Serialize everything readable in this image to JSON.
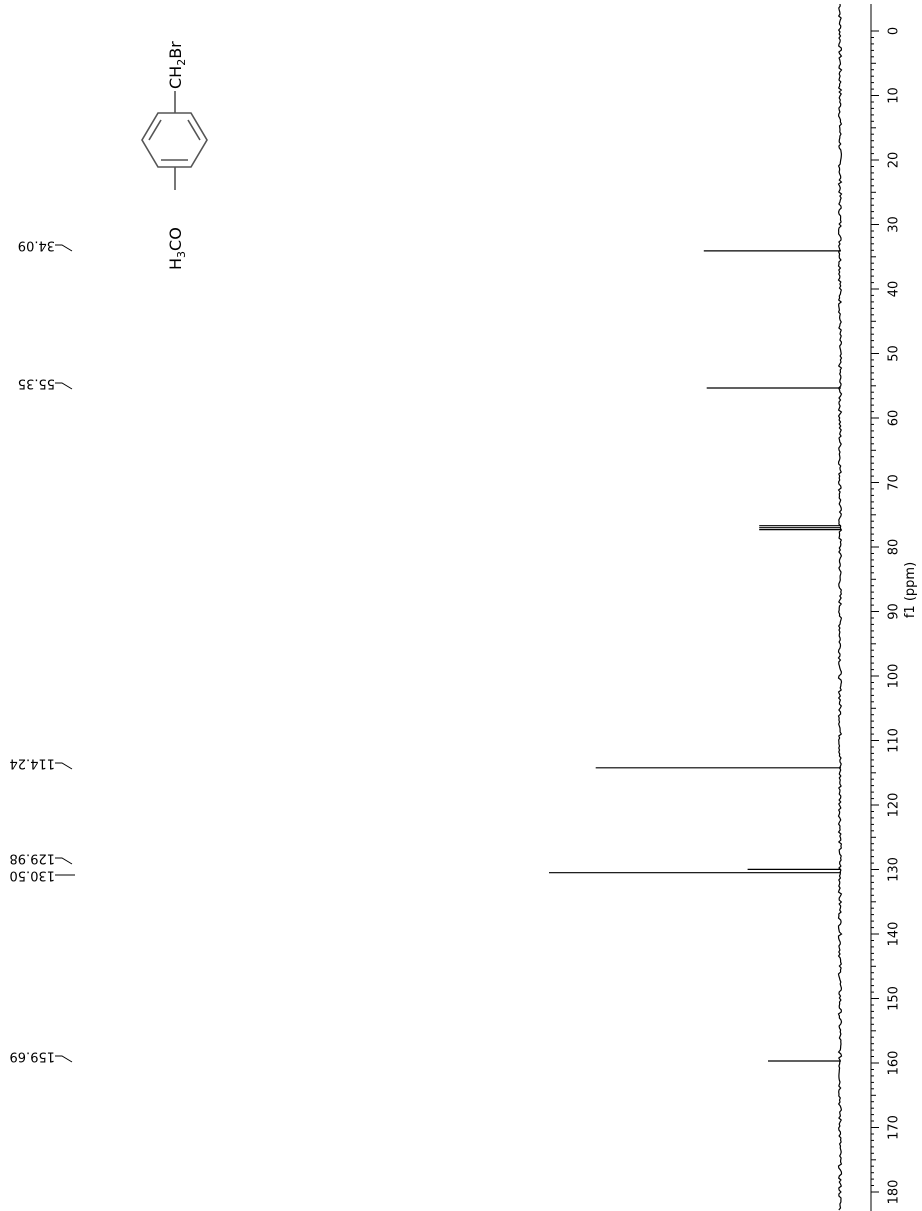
{
  "chart_data": {
    "type": "line",
    "title": "",
    "xlabel": "f1 (ppm)",
    "ylabel": "",
    "xlim": [
      0,
      180
    ],
    "x_ticks": [
      0,
      10,
      20,
      30,
      40,
      50,
      60,
      70,
      80,
      90,
      100,
      110,
      120,
      130,
      140,
      150,
      160,
      170,
      180
    ],
    "tick_labels": [
      "0",
      "10",
      "20",
      "30",
      "40",
      "50",
      "60",
      "70",
      "80",
      "90",
      "100",
      "110",
      "120",
      "130",
      "140",
      "150",
      "160",
      "170",
      "180"
    ],
    "grid": false,
    "orientation": "rotated 90° clockwise; ppm axis runs top-to-bottom on the right",
    "series": [
      {
        "peaks": [
          {
            "ppm": 34.09,
            "intensity": 0.47
          },
          {
            "ppm": 55.35,
            "intensity": 0.46
          },
          {
            "ppm": 76.7,
            "intensity": 0.28
          },
          {
            "ppm": 77.0,
            "intensity": 0.28
          },
          {
            "ppm": 77.3,
            "intensity": 0.28
          },
          {
            "ppm": 114.24,
            "intensity": 0.84
          },
          {
            "ppm": 129.98,
            "intensity": 0.32
          },
          {
            "ppm": 130.5,
            "intensity": 1.0
          },
          {
            "ppm": 159.69,
            "intensity": 0.25
          }
        ]
      }
    ],
    "peak_labels": [
      {
        "text": "34.09",
        "ppm": 34.09
      },
      {
        "text": "55.35",
        "ppm": 55.35
      },
      {
        "text": "114.24",
        "ppm": 114.24
      },
      {
        "text": "129.98",
        "ppm": 129.98
      },
      {
        "text": "130.50",
        "ppm": 130.5
      },
      {
        "text": "159.69",
        "ppm": 159.69
      }
    ]
  },
  "structure": {
    "substituent_top": "CH2Br",
    "substituent_top_parts": [
      "CH",
      "2",
      "Br"
    ],
    "substituent_bottom": "H3CO",
    "substituent_bottom_parts": [
      "H",
      "3",
      "CO"
    ]
  }
}
